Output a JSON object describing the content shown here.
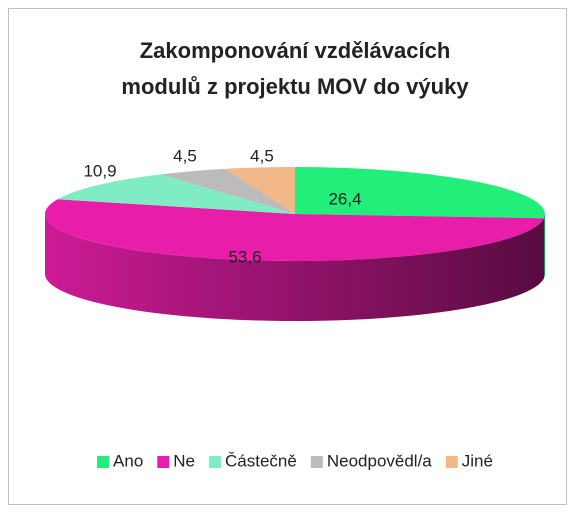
{
  "chart_data": {
    "type": "pie3d",
    "title": [
      "Zakomponování vzdělávacích",
      "modulů z projektu MOV do výuky"
    ],
    "categories": [
      "Ano",
      "Ne",
      "Částečně",
      "Neodpovědl/a",
      "Jiné"
    ],
    "values": [
      26.4,
      53.6,
      10.9,
      4.5,
      4.5
    ],
    "value_labels": [
      "26,4",
      "53,6",
      "10,9",
      "4,5",
      "4,5"
    ],
    "colors": [
      "#22ee7a",
      "#e81eaa",
      "#7fecc4",
      "#bbbbbb",
      "#f2b88a"
    ],
    "legend": "bottom"
  }
}
